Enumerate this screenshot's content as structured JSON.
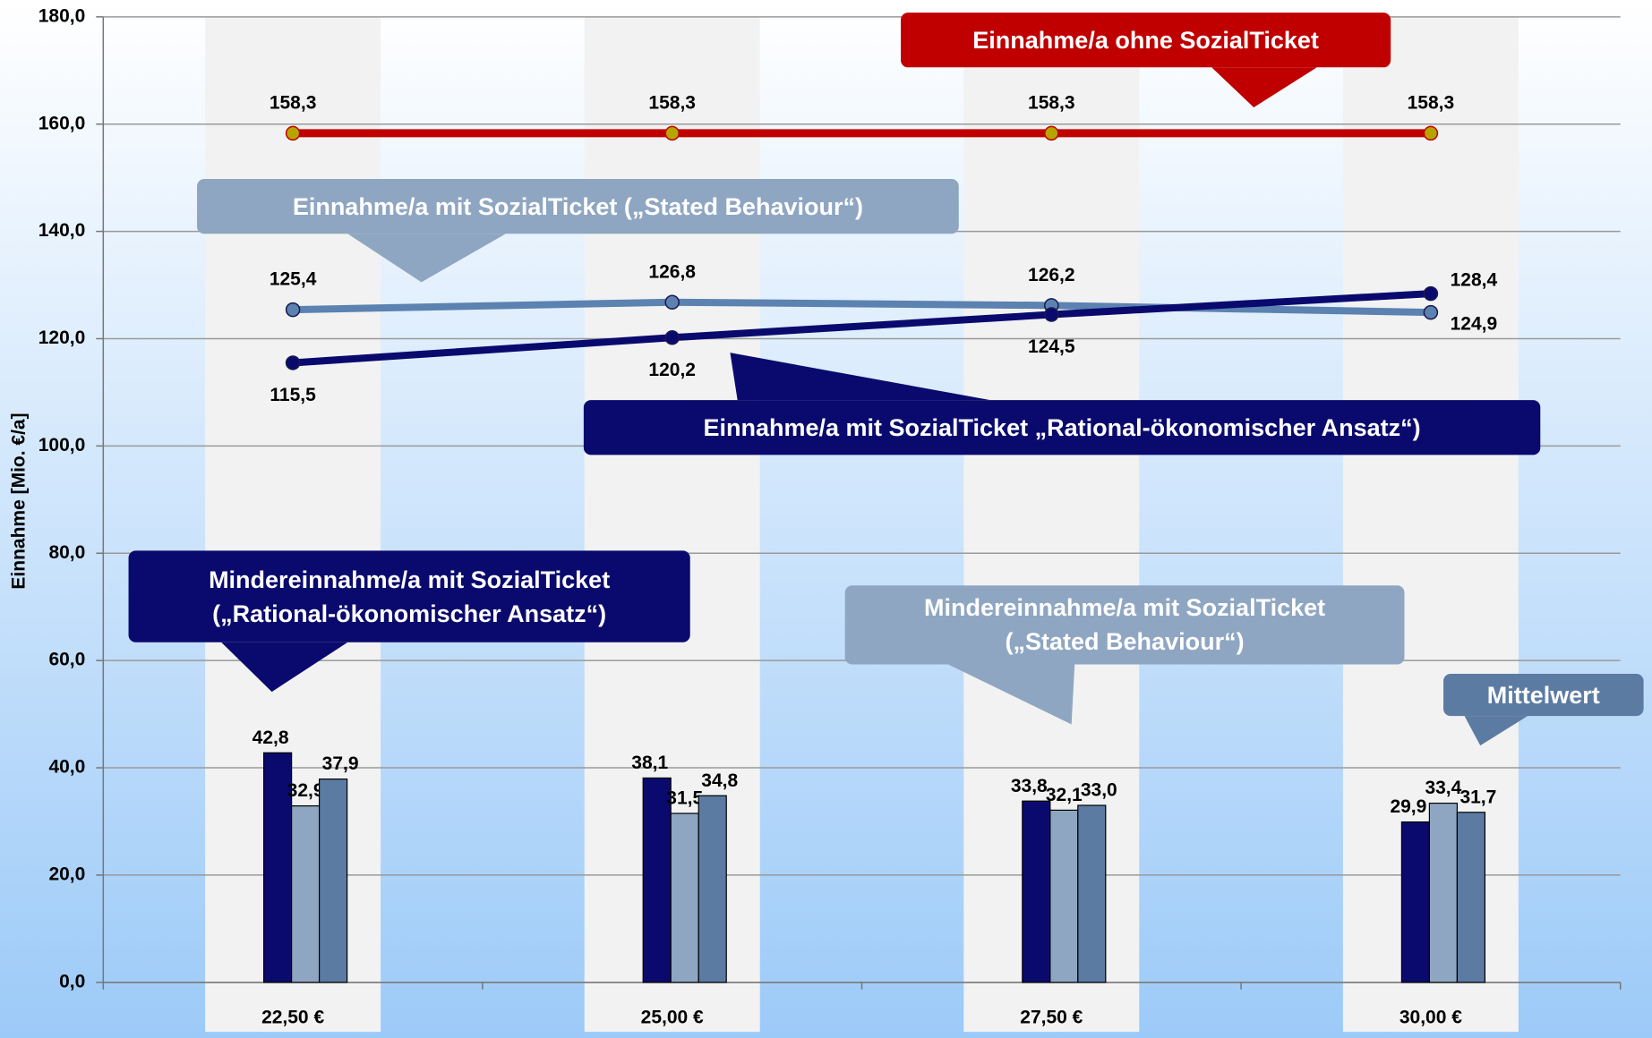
{
  "chart_data": {
    "type": "combo",
    "ylabel": "Einnahme [Mio. €/a]",
    "categories": [
      "22,50 €",
      "25,00 €",
      "27,50 €",
      "30,00 €"
    ],
    "ylim": [
      0,
      180
    ],
    "yticks": [
      {
        "value": 0,
        "label": "0,0"
      },
      {
        "value": 20,
        "label": "20,0"
      },
      {
        "value": 40,
        "label": "40,0"
      },
      {
        "value": 60,
        "label": "60,0"
      },
      {
        "value": 80,
        "label": "80,0"
      },
      {
        "value": 100,
        "label": "100,0"
      },
      {
        "value": 120,
        "label": "120,0"
      },
      {
        "value": 140,
        "label": "140,0"
      },
      {
        "value": 160,
        "label": "160,0"
      },
      {
        "value": 180,
        "label": "180,0"
      }
    ],
    "grid": true,
    "series": [
      {
        "name": "Mindereinnahme/a mit SozialTicket („Rational-ökonomischer Ansatz“)",
        "type": "bar",
        "color": "#0a0a6e",
        "values": [
          42.8,
          38.1,
          33.8,
          29.9
        ],
        "value_labels": [
          "42,8",
          "38,1",
          "33,8",
          "29,9"
        ]
      },
      {
        "name": "Mindereinnahme/a mit SozialTicket („Stated Behaviour“)",
        "type": "bar",
        "color": "#8ea6c1",
        "values": [
          32.9,
          31.5,
          32.1,
          33.4
        ],
        "value_labels": [
          "32,9",
          "31,5",
          "32,1",
          "33,4"
        ]
      },
      {
        "name": "Mittelwert",
        "type": "bar",
        "color": "#5b7ba3",
        "values": [
          37.9,
          34.8,
          33.0,
          31.7
        ],
        "value_labels": [
          "37,9",
          "34,8",
          "33,0",
          "31,7"
        ]
      },
      {
        "name": "Einnahme/a ohne SozialTicket",
        "type": "line",
        "color": "#c00000",
        "values": [
          158.3,
          158.3,
          158.3,
          158.3
        ],
        "value_labels": [
          "158,3",
          "158,3",
          "158,3",
          "158,3"
        ]
      },
      {
        "name": "Einnahme/a mit SozialTicket („Stated Behaviour“)",
        "type": "line",
        "color": "#5b82b0",
        "values": [
          125.4,
          126.8,
          126.2,
          124.9
        ],
        "value_labels": [
          "125,4",
          "126,8",
          "126,2",
          "124,9"
        ]
      },
      {
        "name": "Einnahme/a mit SozialTicket „Rational-ökonomischer Ansatz“)",
        "type": "line",
        "color": "#0a0a6e",
        "values": [
          115.5,
          120.2,
          124.5,
          128.4
        ],
        "value_labels": [
          "115,5",
          "120,2",
          "124,5",
          "128,4"
        ]
      }
    ]
  }
}
